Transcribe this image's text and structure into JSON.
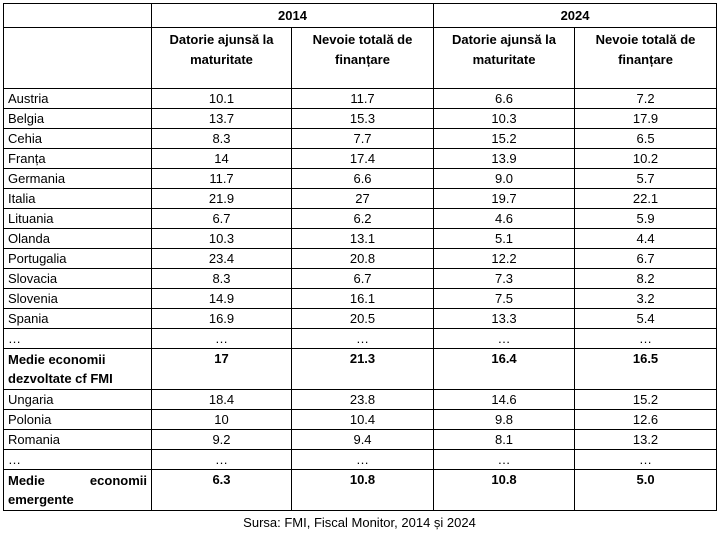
{
  "table": {
    "years": [
      "2014",
      "2024"
    ],
    "column_headers": [
      "Datorie ajunsă la maturitate",
      "Nevoie totală de finanțare",
      "Datorie ajunsă la maturitate",
      "Nevoie totală de finanțare"
    ],
    "rows": [
      {
        "type": "data",
        "label": "Austria",
        "values": [
          "10.1",
          "11.7",
          "6.6",
          "7.2"
        ]
      },
      {
        "type": "data",
        "label": "Belgia",
        "values": [
          "13.7",
          "15.3",
          "10.3",
          "17.9"
        ]
      },
      {
        "type": "data",
        "label": "Cehia",
        "values": [
          "8.3",
          "7.7",
          "15.2",
          "6.5"
        ]
      },
      {
        "type": "data",
        "label": "Franța",
        "values": [
          "14",
          "17.4",
          "13.9",
          "10.2"
        ]
      },
      {
        "type": "data",
        "label": "Germania",
        "values": [
          "11.7",
          "6.6",
          "9.0",
          "5.7"
        ]
      },
      {
        "type": "data",
        "label": "Italia",
        "values": [
          "21.9",
          "27",
          "19.7",
          "22.1"
        ]
      },
      {
        "type": "data",
        "label": "Lituania",
        "values": [
          "6.7",
          "6.2",
          "4.6",
          "5.9"
        ]
      },
      {
        "type": "data",
        "label": "Olanda",
        "values": [
          "10.3",
          "13.1",
          "5.1",
          "4.4"
        ]
      },
      {
        "type": "data",
        "label": "Portugalia",
        "values": [
          "23.4",
          "20.8",
          "12.2",
          "6.7"
        ]
      },
      {
        "type": "data",
        "label": "Slovacia",
        "values": [
          "8.3",
          "6.7",
          "7.3",
          "8.2"
        ]
      },
      {
        "type": "data",
        "label": "Slovenia",
        "values": [
          "14.9",
          "16.1",
          "7.5",
          "3.2"
        ]
      },
      {
        "type": "data",
        "label": "Spania",
        "values": [
          "16.9",
          "20.5",
          "13.3",
          "5.4"
        ]
      },
      {
        "type": "data",
        "label": "…",
        "values": [
          "…",
          "…",
          "…",
          "…"
        ]
      },
      {
        "type": "avg",
        "label_lines": [
          "Medie economii",
          "dezvoltate cf FMI"
        ],
        "values": [
          "17",
          "21.3",
          "16.4",
          "16.5"
        ]
      },
      {
        "type": "data",
        "label": "Ungaria",
        "values": [
          "18.4",
          "23.8",
          "14.6",
          "15.2"
        ]
      },
      {
        "type": "data",
        "label": "Polonia",
        "values": [
          "10",
          "10.4",
          "9.8",
          "12.6"
        ]
      },
      {
        "type": "data",
        "label": "Romania",
        "values": [
          "9.2",
          "9.4",
          "8.1",
          "13.2"
        ]
      },
      {
        "type": "data",
        "label": "…",
        "values": [
          "…",
          "…",
          "…",
          "…"
        ]
      },
      {
        "type": "avg-justify",
        "label_words": [
          "Medie",
          "economii"
        ],
        "label_line2": "emergente",
        "values": [
          "6.3",
          "10.8",
          "10.8",
          "5.0"
        ]
      }
    ]
  },
  "source_note": "Sursa: FMI, Fiscal Monitor, 2014 și 2024"
}
